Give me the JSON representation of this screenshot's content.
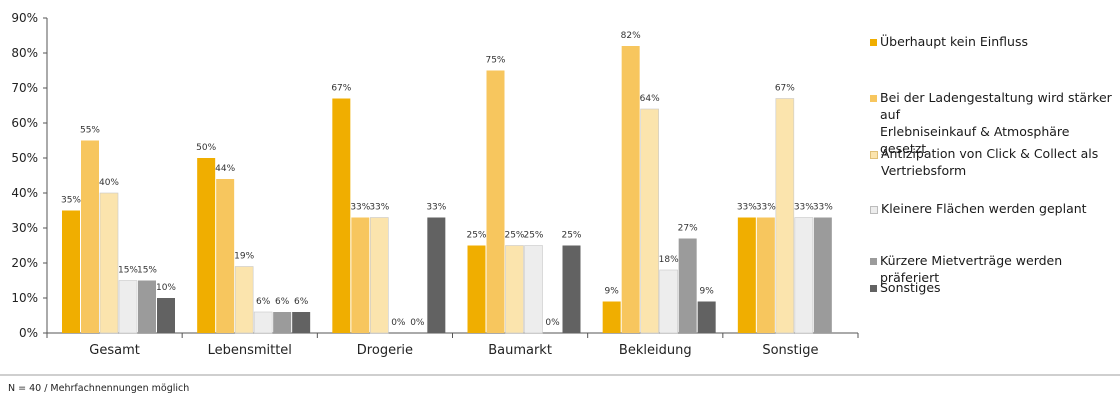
{
  "chart_data": {
    "type": "bar",
    "title": "",
    "xlabel": "",
    "ylabel": "",
    "ylim": [
      0,
      90
    ],
    "yticks": [
      "0%",
      "10%",
      "20%",
      "30%",
      "40%",
      "50%",
      "60%",
      "70%",
      "80%",
      "90%"
    ],
    "grid": false,
    "legend_position": "right",
    "categories": [
      "Gesamt",
      "Lebensmittel",
      "Drogerie",
      "Baumarkt",
      "Bekleidung",
      "Sonstige"
    ],
    "series": [
      {
        "name": "Überhaupt kein Einfluss",
        "color": "#f0ae00",
        "values": [
          35,
          50,
          67,
          25,
          9,
          33
        ],
        "labels": [
          "35%",
          "50%",
          "67%",
          "25%",
          "9%",
          "33%"
        ]
      },
      {
        "name": "Bei der Ladengestaltung wird stärker auf\nErlebniseinkauf & Atmosphäre gesetzt",
        "color": "#f7c65e",
        "values": [
          55,
          44,
          33,
          75,
          82,
          33
        ],
        "labels": [
          "55%",
          "44%",
          "33%",
          "75%",
          "82%",
          "33%"
        ]
      },
      {
        "name": "Antizipation von Click & Collect als\nVertriebsform",
        "color": "#fbe4ad",
        "values": [
          40,
          19,
          33,
          25,
          64,
          67
        ],
        "labels": [
          "40%",
          "19%",
          "33%",
          "25%",
          "64%",
          "67%"
        ]
      },
      {
        "name": "Kleinere Flächen werden geplant",
        "color": "#ededed",
        "values": [
          15,
          6,
          0,
          25,
          18,
          33
        ],
        "labels": [
          "15%",
          "6%",
          "0%",
          "25%",
          "18%",
          "33%"
        ]
      },
      {
        "name": "Kürzere Mietverträge werden präferiert",
        "color": "#9b9b9b",
        "values": [
          15,
          6,
          0,
          0,
          27,
          33
        ],
        "labels": [
          "15%",
          "6%",
          "0%",
          "0%",
          "27%",
          "33%"
        ]
      },
      {
        "name": "Sonstiges",
        "color": "#626262",
        "values": [
          10,
          6,
          33,
          25,
          9,
          null
        ],
        "labels": [
          "10%",
          "6%",
          "33%",
          "25%",
          "9%",
          ""
        ]
      }
    ]
  },
  "footnote": "N = 40 / Mehrfachnennungen möglich"
}
